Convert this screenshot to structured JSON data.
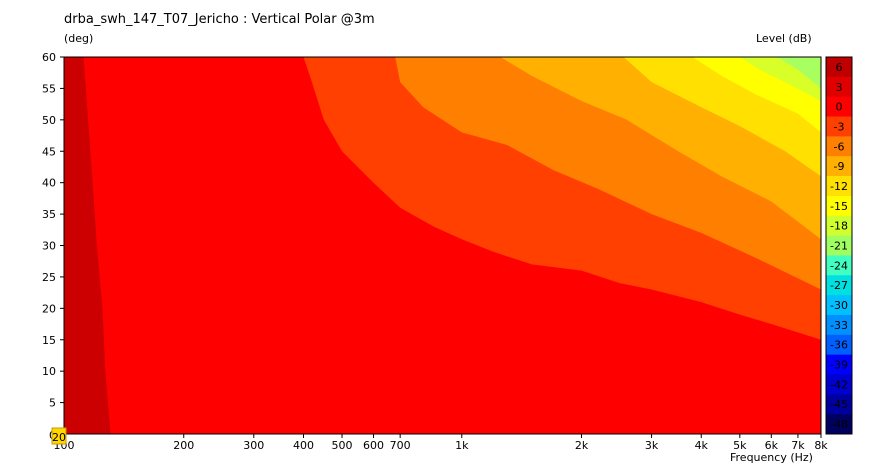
{
  "chart_data": {
    "type": "heatmap",
    "title": "drba_swh_147_T07_Jericho : Vertical Polar @3m",
    "ylabel": "(deg)",
    "xlabel": "Frequency  (Hz)",
    "colorbar_label": "Level  (dB)",
    "x_scale": "log",
    "xlim": [
      100,
      8000
    ],
    "ylim": [
      0,
      60
    ],
    "x_ticks": [
      {
        "value": 100,
        "label": "100"
      },
      {
        "value": 200,
        "label": "200"
      },
      {
        "value": 300,
        "label": "300"
      },
      {
        "value": 400,
        "label": "400"
      },
      {
        "value": 500,
        "label": "500"
      },
      {
        "value": 600,
        "label": "600"
      },
      {
        "value": 700,
        "label": "700"
      },
      {
        "value": 1000,
        "label": "1k"
      },
      {
        "value": 2000,
        "label": "2k"
      },
      {
        "value": 3000,
        "label": "3k"
      },
      {
        "value": 4000,
        "label": "4k"
      },
      {
        "value": 5000,
        "label": "5k"
      },
      {
        "value": 6000,
        "label": "6k"
      },
      {
        "value": 7000,
        "label": "7k"
      },
      {
        "value": 8000,
        "label": "8k"
      }
    ],
    "y_ticks": [
      {
        "value": 0,
        "label": "0"
      },
      {
        "value": 5,
        "label": "5"
      },
      {
        "value": 10,
        "label": "10"
      },
      {
        "value": 15,
        "label": "15"
      },
      {
        "value": 20,
        "label": "20"
      },
      {
        "value": 25,
        "label": "25"
      },
      {
        "value": 30,
        "label": "30"
      },
      {
        "value": 35,
        "label": "35"
      },
      {
        "value": 40,
        "label": "40"
      },
      {
        "value": 45,
        "label": "45"
      },
      {
        "value": 50,
        "label": "50"
      },
      {
        "value": 55,
        "label": "55"
      },
      {
        "value": 60,
        "label": "60"
      }
    ],
    "corner_label": "20",
    "colorbar": [
      {
        "label": "6",
        "color": "#c00000"
      },
      {
        "label": "3",
        "color": "#e00000"
      },
      {
        "label": "0",
        "color": "#ff0000"
      },
      {
        "label": "-3",
        "color": "#ff4000"
      },
      {
        "label": "-6",
        "color": "#ff8000"
      },
      {
        "label": "-9",
        "color": "#ffb000"
      },
      {
        "label": "-12",
        "color": "#ffe000"
      },
      {
        "label": "-15",
        "color": "#ffff00"
      },
      {
        "label": "-18",
        "color": "#d0ff30"
      },
      {
        "label": "-21",
        "color": "#a0ff60"
      },
      {
        "label": "-24",
        "color": "#40ffc0"
      },
      {
        "label": "-27",
        "color": "#00e0e0"
      },
      {
        "label": "-30",
        "color": "#00c0ff"
      },
      {
        "label": "-33",
        "color": "#0090ff"
      },
      {
        "label": "-36",
        "color": "#0060ff"
      },
      {
        "label": "-39",
        "color": "#0000ff"
      },
      {
        "label": "-42",
        "color": "#0000d0"
      },
      {
        "label": "-45",
        "color": "#0000a0"
      },
      {
        "label": "-48",
        "color": "#000060"
      }
    ],
    "background_color": "#ff0000",
    "contours": [
      {
        "level": "3",
        "color": "#cc0000",
        "points": [
          [
            100,
            0
          ],
          [
            100,
            60
          ],
          [
            112,
            60
          ],
          [
            115,
            50
          ],
          [
            118,
            40
          ],
          [
            121,
            30
          ],
          [
            125,
            20
          ],
          [
            127,
            10
          ],
          [
            131,
            0
          ]
        ]
      },
      {
        "level": "-3",
        "color": "#ff4000",
        "points": [
          [
            8000,
            0
          ],
          [
            8000,
            60
          ],
          [
            400,
            60
          ],
          [
            420,
            56
          ],
          [
            450,
            50
          ],
          [
            500,
            45
          ],
          [
            600,
            40
          ],
          [
            700,
            36
          ],
          [
            850,
            33
          ],
          [
            1000,
            31
          ],
          [
            1200,
            29
          ],
          [
            1500,
            27
          ],
          [
            2000,
            26
          ],
          [
            2500,
            24
          ],
          [
            3000,
            23
          ],
          [
            4000,
            21
          ],
          [
            5000,
            19
          ],
          [
            6000,
            17.5
          ],
          [
            8000,
            15
          ]
        ]
      },
      {
        "level": "-6",
        "color": "#ff8000",
        "points": [
          [
            8000,
            0
          ],
          [
            8000,
            60
          ],
          [
            680,
            60
          ],
          [
            700,
            56
          ],
          [
            800,
            52
          ],
          [
            1000,
            48
          ],
          [
            1300,
            46
          ],
          [
            1700,
            42
          ],
          [
            2200,
            39
          ],
          [
            3000,
            35
          ],
          [
            4000,
            32
          ],
          [
            5500,
            28
          ],
          [
            8000,
            23
          ]
        ]
      },
      {
        "level": "-9",
        "color": "#ffb000",
        "points": [
          [
            8000,
            0
          ],
          [
            8000,
            60
          ],
          [
            1250,
            60
          ],
          [
            1500,
            57
          ],
          [
            2000,
            53
          ],
          [
            2600,
            50
          ],
          [
            3500,
            45
          ],
          [
            4500,
            41
          ],
          [
            6000,
            37
          ],
          [
            8000,
            31
          ]
        ]
      },
      {
        "level": "-12",
        "color": "#ffe000",
        "points": [
          [
            8000,
            0
          ],
          [
            8000,
            60
          ],
          [
            2550,
            60
          ],
          [
            3000,
            56
          ],
          [
            4000,
            52
          ],
          [
            5000,
            49
          ],
          [
            6500,
            45
          ],
          [
            8000,
            41
          ]
        ]
      },
      {
        "level": "-15",
        "color": "#ffff00",
        "points": [
          [
            8000,
            0
          ],
          [
            8000,
            60
          ],
          [
            3800,
            60
          ],
          [
            4500,
            57
          ],
          [
            5500,
            54
          ],
          [
            7000,
            51
          ],
          [
            8000,
            48
          ]
        ]
      },
      {
        "level": "-18",
        "color": "#d8ff28",
        "points": [
          [
            8000,
            0
          ],
          [
            8000,
            60
          ],
          [
            5000,
            60
          ],
          [
            5600,
            58
          ],
          [
            6500,
            56
          ],
          [
            8000,
            53
          ]
        ]
      },
      {
        "level": "-21",
        "color": "#a8ff60",
        "points": [
          [
            8000,
            0
          ],
          [
            8000,
            60
          ],
          [
            6200,
            60
          ],
          [
            7000,
            58
          ],
          [
            8000,
            55
          ]
        ]
      }
    ]
  }
}
